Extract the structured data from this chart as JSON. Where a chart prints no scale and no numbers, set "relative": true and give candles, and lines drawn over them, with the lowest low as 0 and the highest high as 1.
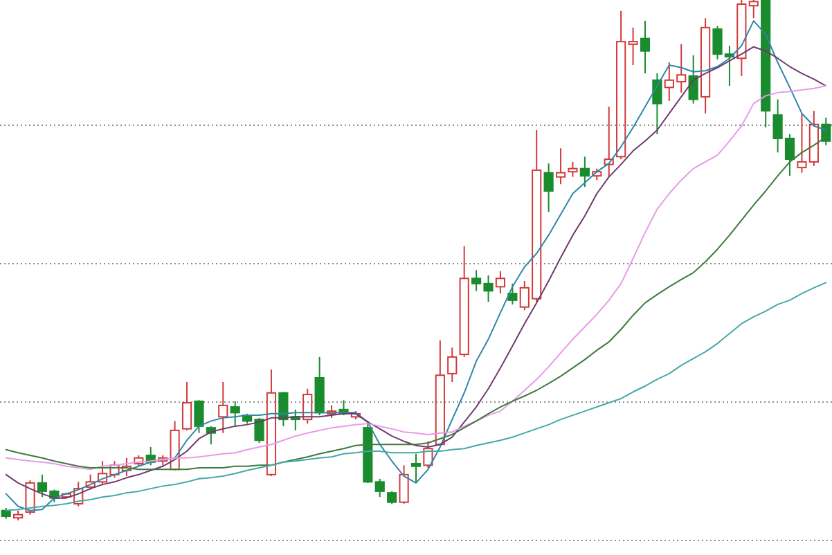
{
  "chart_data": {
    "type": "candlestick",
    "relative": true,
    "grid": true,
    "categories": [
      null,
      null,
      null,
      null,
      null,
      null,
      null,
      null,
      null,
      null,
      null,
      null,
      null,
      null,
      null,
      null,
      null,
      null,
      null,
      null,
      null,
      null,
      null,
      null,
      null,
      null,
      null,
      null,
      null,
      null,
      null,
      null,
      null,
      null,
      null,
      null,
      null,
      null,
      null,
      null,
      null,
      null,
      null,
      null,
      null,
      null,
      null,
      null,
      null,
      null,
      null,
      null,
      null,
      null,
      null,
      null,
      null,
      null,
      null,
      null,
      null,
      null,
      null,
      null,
      null,
      null,
      null,
      null,
      null
    ],
    "ohlc": [
      [
        0.019,
        0.024,
        0.003,
        0.008
      ],
      [
        0.005,
        0.019,
        0,
        0.011
      ],
      [
        0.016,
        0.077,
        0.011,
        0.072
      ],
      [
        0.072,
        0.088,
        0.045,
        0.056
      ],
      [
        0.056,
        0.059,
        0.035,
        0.043
      ],
      [
        0.045,
        0.053,
        0.043,
        0.051
      ],
      [
        0.032,
        0.074,
        0.027,
        0.061
      ],
      [
        0.064,
        0.088,
        0.059,
        0.074
      ],
      [
        0.074,
        0.114,
        0.069,
        0.09
      ],
      [
        0.088,
        0.114,
        0.082,
        0.106
      ],
      [
        0.096,
        0.12,
        0.085,
        0.104
      ],
      [
        0.109,
        0.125,
        0.104,
        0.12
      ],
      [
        0.125,
        0.141,
        0.106,
        0.112
      ],
      [
        0.114,
        0.125,
        0.106,
        0.12
      ],
      [
        0.098,
        0.191,
        0.096,
        0.173
      ],
      [
        0.176,
        0.266,
        0.173,
        0.226
      ],
      [
        0.229,
        0.231,
        0.168,
        0.181
      ],
      [
        0.178,
        0.181,
        0.146,
        0.168
      ],
      [
        0.199,
        0.266,
        0.168,
        0.221
      ],
      [
        0.218,
        0.229,
        0.181,
        0.207
      ],
      [
        0.202,
        0.205,
        0.186,
        0.191
      ],
      [
        0.194,
        0.197,
        0.149,
        0.154
      ],
      [
        0.088,
        0.29,
        0.085,
        0.245
      ],
      [
        0.245,
        0.247,
        0.181,
        0.194
      ],
      [
        0.199,
        0.213,
        0.173,
        0.194
      ],
      [
        0.194,
        0.253,
        0.186,
        0.242
      ],
      [
        0.274,
        0.314,
        0.202,
        0.207
      ],
      [
        0.205,
        0.221,
        0.197,
        0.21
      ],
      [
        0.213,
        0.231,
        0.202,
        0.205
      ],
      [
        0.199,
        0.21,
        0.194,
        0.205
      ],
      [
        0.178,
        0.191,
        0.072,
        0.074
      ],
      [
        0.074,
        0.08,
        0.045,
        0.056
      ],
      [
        0.053,
        0.056,
        0.032,
        0.035
      ],
      [
        0.035,
        0.106,
        0.032,
        0.088
      ],
      [
        0.109,
        0.128,
        0.072,
        0.104
      ],
      [
        0.106,
        0.152,
        0.101,
        0.138
      ],
      [
        0.146,
        0.346,
        0.144,
        0.279
      ],
      [
        0.282,
        0.332,
        0.266,
        0.314
      ],
      [
        0.319,
        0.527,
        0.314,
        0.465
      ],
      [
        0.465,
        0.481,
        0.441,
        0.455
      ],
      [
        0.455,
        0.471,
        0.42,
        0.441
      ],
      [
        0.449,
        0.479,
        0.436,
        0.465
      ],
      [
        0.436,
        0.455,
        0.415,
        0.423
      ],
      [
        0.41,
        0.46,
        0.404,
        0.447
      ],
      [
        0.426,
        0.75,
        0.42,
        0.673
      ],
      [
        0.668,
        0.686,
        0.593,
        0.633
      ],
      [
        0.66,
        0.715,
        0.646,
        0.668
      ],
      [
        0.67,
        0.689,
        0.66,
        0.676
      ],
      [
        0.676,
        0.699,
        0.641,
        0.662
      ],
      [
        0.662,
        0.676,
        0.654,
        0.67
      ],
      [
        0.684,
        0.795,
        0.66,
        0.694
      ],
      [
        0.699,
        0.979,
        0.694,
        0.92
      ],
      [
        0.915,
        0.947,
        0.875,
        0.92
      ],
      [
        0.926,
        0.96,
        0.859,
        0.902
      ],
      [
        0.846,
        0.859,
        0.742,
        0.801
      ],
      [
        0.832,
        0.88,
        0.806,
        0.846
      ],
      [
        0.843,
        0.915,
        0.822,
        0.856
      ],
      [
        0.854,
        0.894,
        0.801,
        0.809
      ],
      [
        0.814,
        0.965,
        0.782,
        0.947
      ],
      [
        0.944,
        0.95,
        0.886,
        0.896
      ],
      [
        0.896,
        0.912,
        0.835,
        0.891
      ],
      [
        0.888,
        1,
        0.854,
        0.992
      ],
      [
        0.989,
        1,
        0.965,
        0.997
      ],
      [
        1,
        1,
        0.755,
        0.787
      ],
      [
        0.779,
        0.809,
        0.707,
        0.734
      ],
      [
        0.734,
        0.742,
        0.662,
        0.694
      ],
      [
        0.678,
        0.782,
        0.668,
        0.689
      ],
      [
        0.689,
        0.787,
        0.681,
        0.761
      ],
      [
        0.761,
        0.774,
        0.721,
        0.729
      ]
    ],
    "colors": [
      "#1a8c2e",
      "#d23a3a",
      "#d23a3a",
      "#1a8c2e",
      "#1a8c2e",
      "#d23a3a",
      "#d23a3a",
      "#d23a3a",
      "#d23a3a",
      "#d23a3a",
      "#d23a3a",
      "#d23a3a",
      "#1a8c2e",
      "#d23a3a",
      "#d23a3a",
      "#d23a3a",
      "#1a8c2e",
      "#1a8c2e",
      "#d23a3a",
      "#1a8c2e",
      "#1a8c2e",
      "#1a8c2e",
      "#d23a3a",
      "#1a8c2e",
      "#1a8c2e",
      "#d23a3a",
      "#1a8c2e",
      "#d23a3a",
      "#1a8c2e",
      "#d23a3a",
      "#1a8c2e",
      "#1a8c2e",
      "#1a8c2e",
      "#d23a3a",
      "#1a8c2e",
      "#d23a3a",
      "#d23a3a",
      "#d23a3a",
      "#d23a3a",
      "#1a8c2e",
      "#1a8c2e",
      "#d23a3a",
      "#1a8c2e",
      "#d23a3a",
      "#d23a3a",
      "#1a8c2e",
      "#d23a3a",
      "#d23a3a",
      "#1a8c2e",
      "#d23a3a",
      "#d23a3a",
      "#d23a3a",
      "#d23a3a",
      "#1a8c2e",
      "#1a8c2e",
      "#d23a3a",
      "#d23a3a",
      "#1a8c2e",
      "#d23a3a",
      "#1a8c2e",
      "#1a8c2e",
      "#d23a3a",
      "#d23a3a",
      "#1a8c2e",
      "#1a8c2e",
      "#1a8c2e",
      "#d23a3a",
      "#d23a3a",
      "#1a8c2e"
    ],
    "series": [
      {
        "type": "line",
        "color": "#2e86a8",
        "values": [
          0.051,
          0.027,
          0.019,
          0.021,
          0.043,
          0.051,
          0.059,
          0.069,
          0.08,
          0.088,
          0.096,
          0.104,
          0.112,
          0.117,
          0.12,
          0.154,
          0.181,
          0.191,
          0.197,
          0.199,
          0.202,
          0.202,
          0.205,
          0.205,
          0.207,
          0.207,
          0.207,
          0.207,
          0.207,
          0.207,
          0.189,
          0.146,
          0.114,
          0.085,
          0.072,
          0.098,
          0.141,
          0.194,
          0.245,
          0.306,
          0.348,
          0.399,
          0.449,
          0.487,
          0.513,
          0.548,
          0.588,
          0.628,
          0.649,
          0.67,
          0.686,
          0.718,
          0.755,
          0.795,
          0.835,
          0.875,
          0.87,
          0.862,
          0.864,
          0.872,
          0.888,
          0.912,
          0.96,
          0.934,
          0.88,
          0.832,
          0.782,
          0.758,
          0.75
        ]
      },
      {
        "type": "line",
        "color": "#6e3b6e",
        "values": [
          0.088,
          0.072,
          0.061,
          0.051,
          0.043,
          0.043,
          0.051,
          0.061,
          0.069,
          0.074,
          0.082,
          0.088,
          0.096,
          0.104,
          0.117,
          0.133,
          0.157,
          0.17,
          0.176,
          0.181,
          0.184,
          0.189,
          0.197,
          0.197,
          0.199,
          0.199,
          0.199,
          0.202,
          0.205,
          0.205,
          0.189,
          0.176,
          0.162,
          0.152,
          0.144,
          0.141,
          0.146,
          0.16,
          0.189,
          0.218,
          0.253,
          0.293,
          0.335,
          0.378,
          0.418,
          0.46,
          0.505,
          0.548,
          0.585,
          0.628,
          0.66,
          0.684,
          0.71,
          0.729,
          0.75,
          0.782,
          0.814,
          0.846,
          0.859,
          0.87,
          0.883,
          0.896,
          0.91,
          0.902,
          0.888,
          0.872,
          0.859,
          0.848,
          0.835
        ]
      },
      {
        "type": "line",
        "color": "#e79be8",
        "values": [
          0.12,
          0.117,
          0.114,
          0.112,
          0.109,
          0.104,
          0.101,
          0.098,
          0.104,
          0.106,
          0.109,
          0.112,
          0.114,
          0.117,
          0.12,
          0.12,
          0.122,
          0.125,
          0.128,
          0.13,
          0.136,
          0.141,
          0.146,
          0.154,
          0.162,
          0.168,
          0.173,
          0.178,
          0.181,
          0.184,
          0.186,
          0.181,
          0.176,
          0.17,
          0.168,
          0.165,
          0.168,
          0.17,
          0.181,
          0.191,
          0.202,
          0.21,
          0.229,
          0.25,
          0.271,
          0.295,
          0.322,
          0.348,
          0.372,
          0.396,
          0.423,
          0.455,
          0.503,
          0.553,
          0.598,
          0.628,
          0.654,
          0.676,
          0.689,
          0.702,
          0.729,
          0.758,
          0.801,
          0.816,
          0.822,
          0.824,
          0.827,
          0.83,
          0.835
        ]
      },
      {
        "type": "line",
        "color": "#3d7a3d",
        "values": [
          0.136,
          0.13,
          0.125,
          0.12,
          0.114,
          0.109,
          0.104,
          0.101,
          0.101,
          0.101,
          0.101,
          0.098,
          0.098,
          0.098,
          0.098,
          0.098,
          0.101,
          0.101,
          0.101,
          0.104,
          0.104,
          0.106,
          0.106,
          0.112,
          0.117,
          0.122,
          0.128,
          0.133,
          0.138,
          0.144,
          0.146,
          0.146,
          0.146,
          0.146,
          0.146,
          0.149,
          0.157,
          0.165,
          0.178,
          0.191,
          0.205,
          0.218,
          0.229,
          0.239,
          0.25,
          0.263,
          0.277,
          0.293,
          0.309,
          0.327,
          0.343,
          0.367,
          0.394,
          0.418,
          0.434,
          0.449,
          0.463,
          0.476,
          0.497,
          0.521,
          0.548,
          0.577,
          0.606,
          0.633,
          0.662,
          0.689,
          0.707,
          0.721,
          0.737
        ]
      },
      {
        "type": "line",
        "color": "#46a8a8",
        "values": [
          0.019,
          0.021,
          0.024,
          0.027,
          0.029,
          0.032,
          0.037,
          0.04,
          0.045,
          0.048,
          0.053,
          0.056,
          0.061,
          0.066,
          0.069,
          0.074,
          0.08,
          0.082,
          0.085,
          0.09,
          0.096,
          0.101,
          0.106,
          0.112,
          0.114,
          0.117,
          0.12,
          0.122,
          0.128,
          0.13,
          0.133,
          0.133,
          0.13,
          0.13,
          0.13,
          0.133,
          0.133,
          0.136,
          0.138,
          0.144,
          0.149,
          0.154,
          0.16,
          0.168,
          0.176,
          0.184,
          0.194,
          0.202,
          0.21,
          0.218,
          0.226,
          0.234,
          0.247,
          0.258,
          0.271,
          0.282,
          0.298,
          0.311,
          0.324,
          0.34,
          0.359,
          0.378,
          0.391,
          0.402,
          0.415,
          0.423,
          0.436,
          0.447,
          0.457
        ]
      }
    ]
  }
}
